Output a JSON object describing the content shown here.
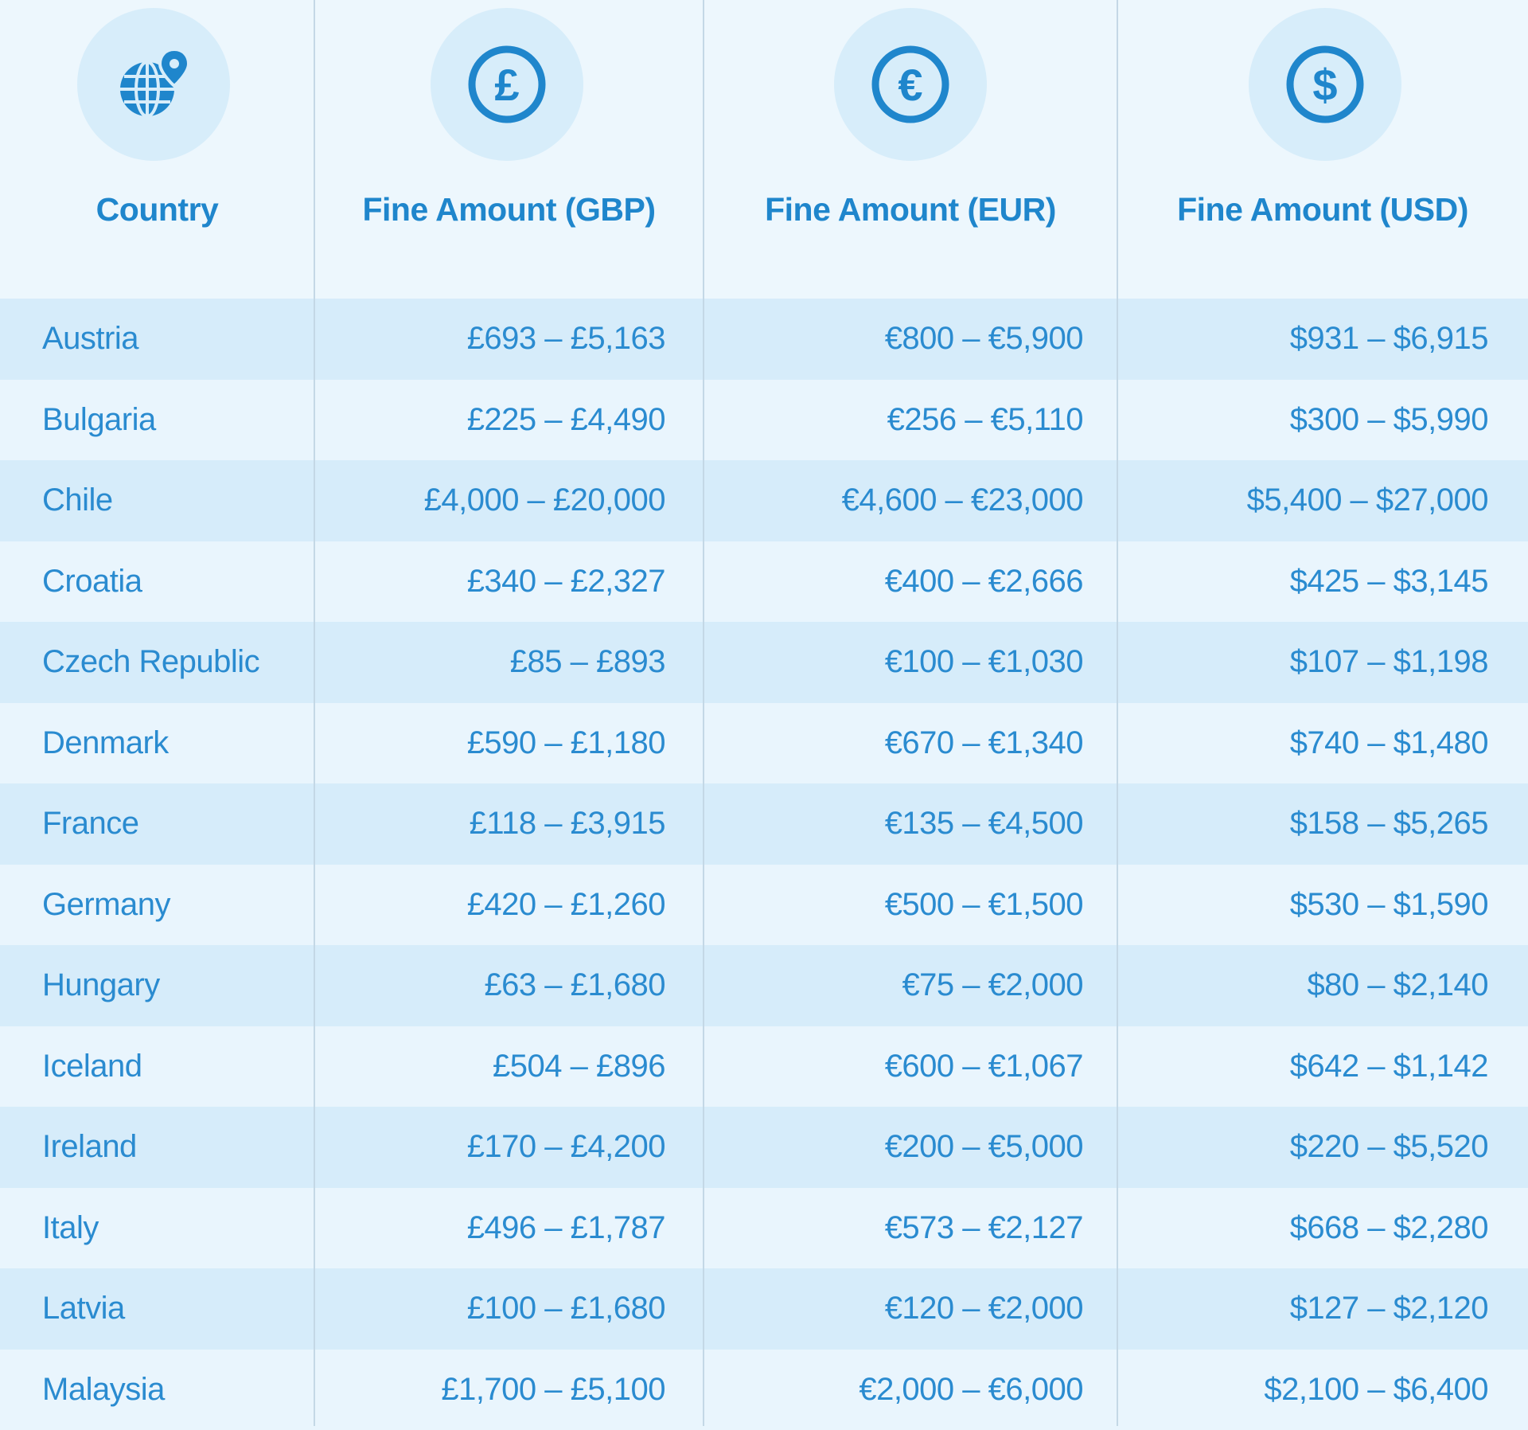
{
  "header": {
    "columns": [
      {
        "label": "Country",
        "icon": "globe-location-icon"
      },
      {
        "label": "Fine Amount (GBP)",
        "icon": "pound-coin-icon"
      },
      {
        "label": "Fine Amount (EUR)",
        "icon": "euro-coin-icon"
      },
      {
        "label": "Fine Amount (USD)",
        "icon": "dollar-coin-icon"
      }
    ]
  },
  "colors": {
    "accent": "#1f86cc",
    "text": "#2a8bd0",
    "row_dark": "#d6ecfa",
    "row_light": "#e9f5fd"
  },
  "rows": [
    {
      "country": "Austria",
      "gbp": "£693 – £5,163",
      "eur": "€800 – €5,900",
      "usd": "$931 – $6,915"
    },
    {
      "country": "Bulgaria",
      "gbp": "£225 – £4,490",
      "eur": "€256 – €5,110",
      "usd": "$300 – $5,990"
    },
    {
      "country": "Chile",
      "gbp": "£4,000 – £20,000",
      "eur": "€4,600 – €23,000",
      "usd": "$5,400 – $27,000"
    },
    {
      "country": "Croatia",
      "gbp": "£340 – £2,327",
      "eur": "€400 – €2,666",
      "usd": "$425 – $3,145"
    },
    {
      "country": "Czech Republic",
      "gbp": "£85 – £893",
      "eur": "€100 – €1,030",
      "usd": "$107 – $1,198"
    },
    {
      "country": "Denmark",
      "gbp": "£590 – £1,180",
      "eur": "€670 – €1,340",
      "usd": "$740 – $1,480"
    },
    {
      "country": "France",
      "gbp": "£118 – £3,915",
      "eur": "€135 – €4,500",
      "usd": "$158 – $5,265"
    },
    {
      "country": "Germany",
      "gbp": "£420 – £1,260",
      "eur": "€500 – €1,500",
      "usd": "$530 – $1,590"
    },
    {
      "country": "Hungary",
      "gbp": "£63 – £1,680",
      "eur": "€75 – €2,000",
      "usd": "$80 – $2,140"
    },
    {
      "country": "Iceland",
      "gbp": "£504 – £896",
      "eur": "€600 – €1,067",
      "usd": "$642 – $1,142"
    },
    {
      "country": "Ireland",
      "gbp": "£170 – £4,200",
      "eur": "€200 – €5,000",
      "usd": "$220 – $5,520"
    },
    {
      "country": "Italy",
      "gbp": "£496 – £1,787",
      "eur": "€573 – €2,127",
      "usd": "$668 – $2,280"
    },
    {
      "country": "Latvia",
      "gbp": "£100 – £1,680",
      "eur": "€120 – €2,000",
      "usd": "$127 – $2,120"
    },
    {
      "country": "Malaysia",
      "gbp": "£1,700 – £5,100",
      "eur": "€2,000 – €6,000",
      "usd": "$2,100 – $6,400"
    }
  ]
}
